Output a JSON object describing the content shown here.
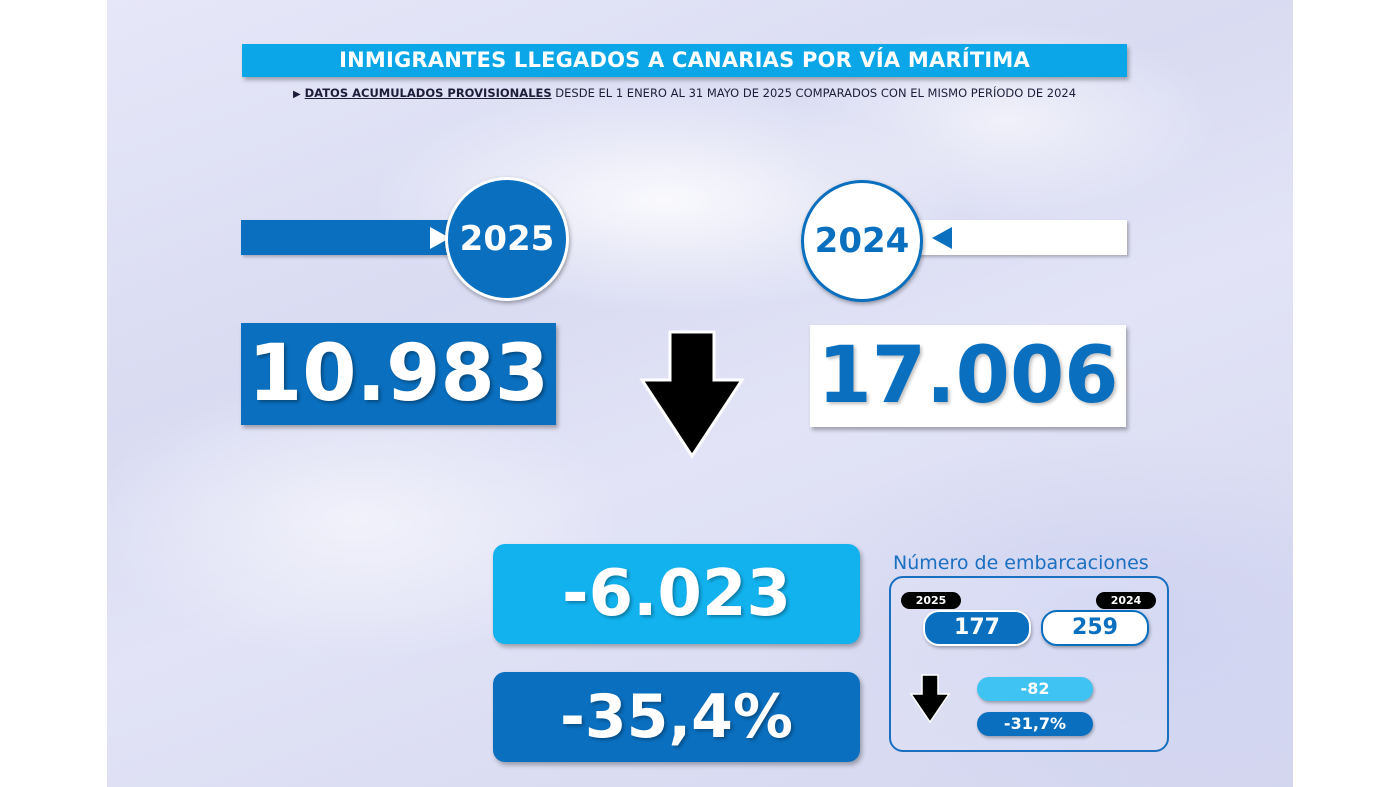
{
  "header": {
    "title": "INMIGRANTES LLEGADOS A CANARIAS POR VÍA MARÍTIMA",
    "subtitle_marker": "▶",
    "subtitle_strong": "DATOS ACUMULADOS PROVISIONALES",
    "subtitle_rest": " DESDE EL 1 ENERO AL 31 MAYO DE 2025 COMPARADOS CON EL MISMO PERÍODO DE 2024"
  },
  "years": {
    "current": "2025",
    "previous": "2024"
  },
  "totals": {
    "current": "10.983",
    "previous": "17.006"
  },
  "difference": {
    "absolute": "-6.023",
    "percent": "-35,4%"
  },
  "boats": {
    "title": "Número de embarcaciones",
    "year_current": "2025",
    "year_previous": "2024",
    "current": "177",
    "previous": "259",
    "difference": "-82",
    "percent": "-31,7%"
  },
  "icons": {
    "trend": "arrow-down-icon",
    "current_pointer": "arrow-right-icon",
    "previous_pointer": "arrow-left-icon"
  },
  "colors": {
    "dark_blue": "#0a6fbf",
    "light_blue": "#12b2ef",
    "title_blue": "#0aa6e8"
  }
}
